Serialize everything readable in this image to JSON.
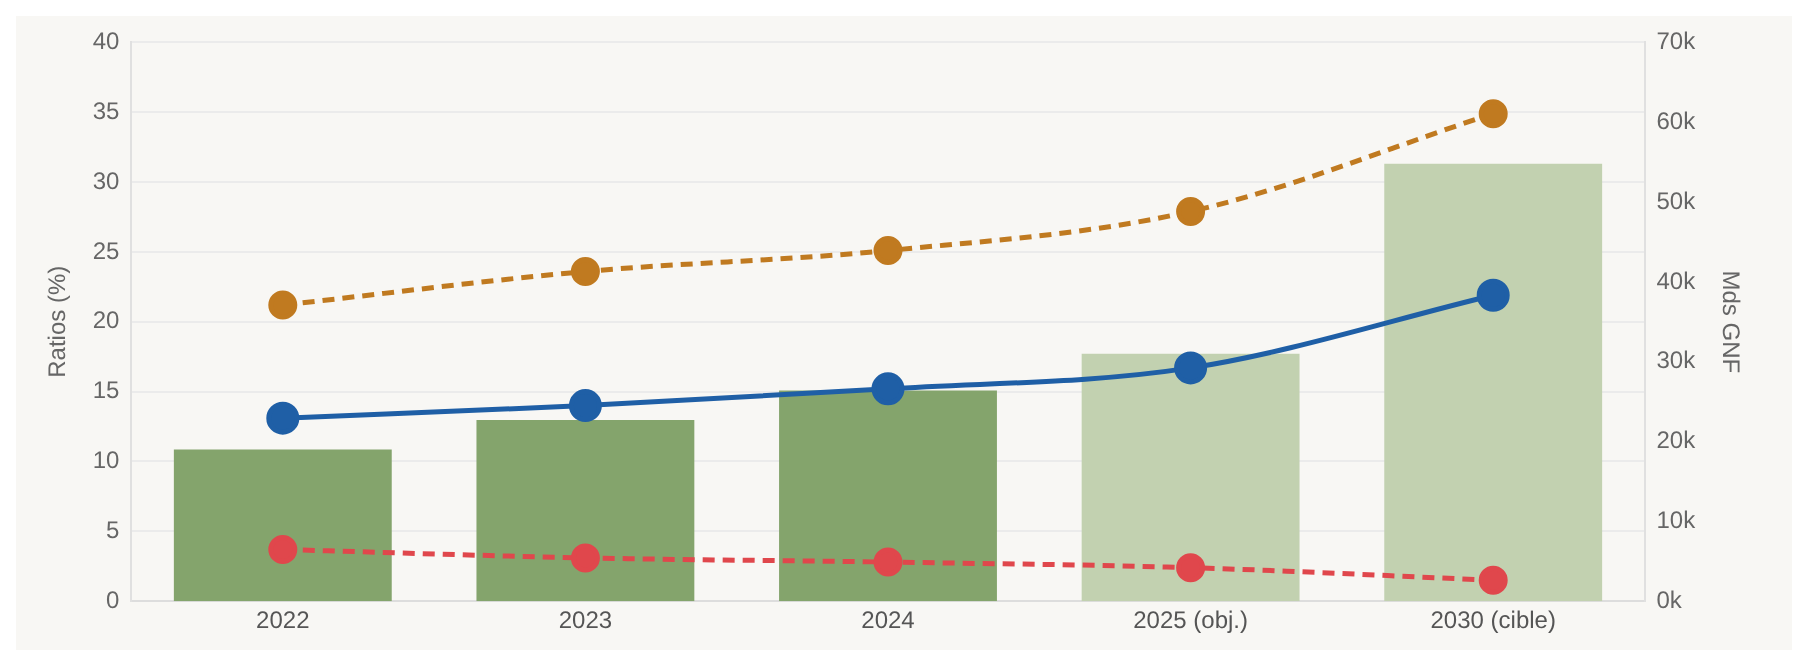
{
  "chart_data": {
    "type": "bar",
    "categories": [
      "2022",
      "2023",
      "2024",
      "2025 (obj.)",
      "2030 (cible)"
    ],
    "ylabel": "Ratios (%)",
    "y2label": "Mds GNF",
    "ylim": [
      0,
      40
    ],
    "yticks": [
      0,
      5,
      10,
      15,
      20,
      25,
      30,
      35,
      40
    ],
    "y2lim": [
      0,
      70000
    ],
    "y2ticks": [
      {
        "value": 0,
        "label": "0k"
      },
      {
        "value": 10000,
        "label": "10k"
      },
      {
        "value": 20000,
        "label": "20k"
      },
      {
        "value": 30000,
        "label": "30k"
      },
      {
        "value": 40000,
        "label": "40k"
      },
      {
        "value": 50000,
        "label": "50k"
      },
      {
        "value": 60000,
        "label": "60k"
      },
      {
        "value": 70000,
        "label": "70k"
      }
    ],
    "grid": "y",
    "legend": false,
    "series": [
      {
        "axis": "y2",
        "colors": [
          "#84a46c",
          "#84a46c",
          "#84a46c",
          "#c2d1b0",
          "#c2d1b0"
        ],
        "values": [
          19000,
          22700,
          26400,
          31000,
          54800
        ]
      },
      {
        "type": "line",
        "color": "#1f5fa6",
        "line_style": "solid",
        "marker": "circle",
        "values": [
          13.1,
          14.0,
          15.2,
          16.7,
          21.9
        ]
      },
      {
        "type": "line",
        "color": "#c07a20",
        "line_style": "dashed",
        "marker": "circle",
        "values": [
          21.2,
          23.6,
          25.1,
          27.9,
          34.9
        ]
      },
      {
        "type": "line",
        "color": "#e0474c",
        "line_style": "dashed",
        "marker": "circle",
        "values": [
          3.7,
          3.1,
          2.8,
          2.4,
          1.5
        ]
      }
    ]
  }
}
